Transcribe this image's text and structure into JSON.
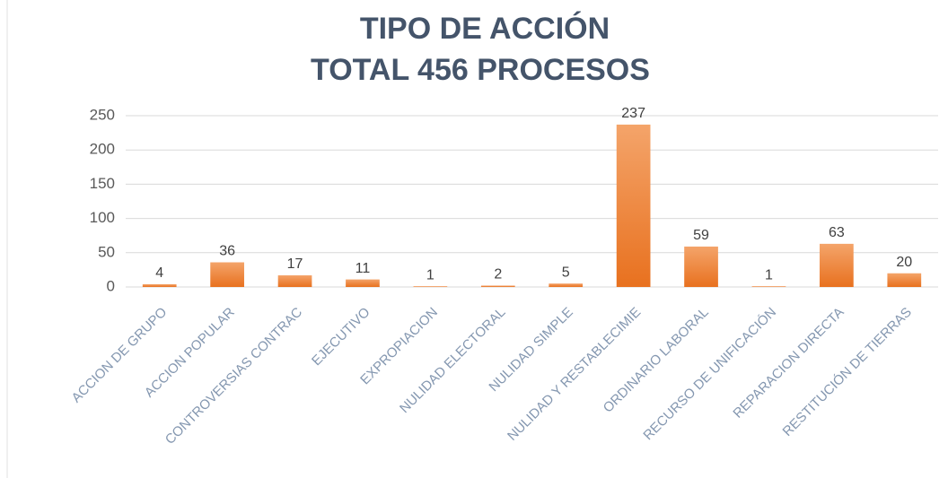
{
  "chart_data": {
    "type": "bar",
    "title": "TIPO DE ACCIÓN",
    "subtitle": "TOTAL 456 PROCESOS",
    "categories": [
      "ACCION DE GRUPO",
      "ACCION POPULAR",
      "CONTROVERSIAS CONTRAC",
      "EJECUTIVO",
      "EXPROPIACION",
      "NULIDAD ELECTORAL",
      "NULIDAD SIMPLE",
      "NULIDAD Y RESTABLECIMIE",
      "ORDINARIO LABORAL",
      "RECURSO DE UNIFICACIÓN",
      "REPARACION DIRECTA",
      "RESTITUCIÓN DE TIERRAS"
    ],
    "values": [
      4,
      36,
      17,
      11,
      1,
      2,
      5,
      237,
      59,
      1,
      63,
      20
    ],
    "color": "#ed7d31",
    "ylim": [
      0,
      250
    ],
    "yticks": [
      0,
      50,
      100,
      150,
      200,
      250
    ],
    "grid": true
  }
}
